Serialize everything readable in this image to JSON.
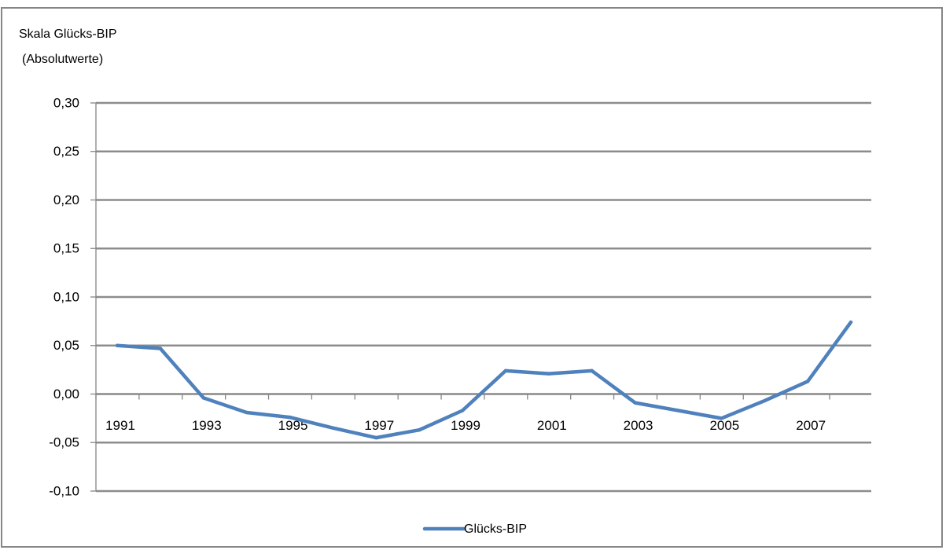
{
  "chart_data": {
    "type": "line",
    "ylabel": [
      "Skala Glücks-BIP",
      "(Absolutwerte)"
    ],
    "xlabel": "",
    "ylim": [
      -0.1,
      0.3
    ],
    "yticks": [
      -0.1,
      -0.05,
      0.0,
      0.05,
      0.1,
      0.15,
      0.2,
      0.25,
      0.3
    ],
    "ytick_labels": [
      "-0,10",
      "-0,05",
      "0,00",
      "0,05",
      "0,10",
      "0,15",
      "0,20",
      "0,25",
      "0,30"
    ],
    "grid": true,
    "x": [
      1991,
      1992,
      1993,
      1994,
      1995,
      1996,
      1997,
      1998,
      1999,
      2000,
      2001,
      2002,
      2003,
      2004,
      2005,
      2006,
      2007,
      2008
    ],
    "xtick_labels": [
      "1991",
      "1993",
      "1995",
      "1997",
      "1999",
      "2001",
      "2003",
      "2005",
      "2007"
    ],
    "series": [
      {
        "name": "Glücks-BIP",
        "color": "#4f81bd",
        "values": [
          0.05,
          0.047,
          -0.004,
          -0.019,
          -0.024,
          -0.035,
          -0.045,
          -0.037,
          -0.017,
          0.024,
          0.021,
          0.024,
          -0.009,
          -0.017,
          -0.025,
          -0.007,
          0.013,
          0.074
        ]
      }
    ],
    "legend_position": "bottom-center"
  }
}
